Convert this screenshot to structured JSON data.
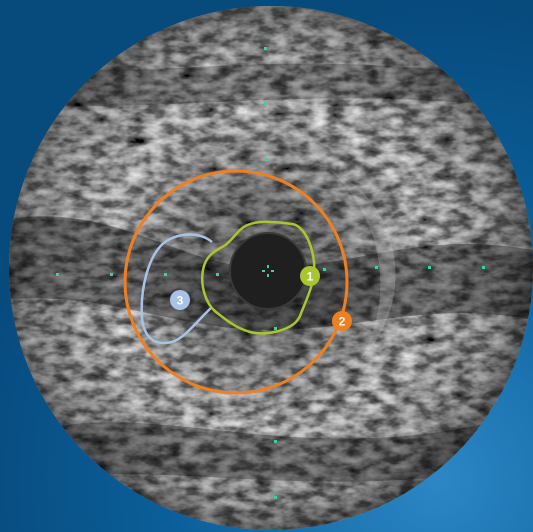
{
  "image": {
    "subject": "intravascular-ultrasound-cross-section",
    "background_color": "#0b5f9a",
    "background_highlight": "#2c87c4",
    "ultrasound_field": "grayscale-speckle",
    "catheter_color": "#202020"
  },
  "markers": [
    {
      "label": "1",
      "color": "#a9c62f",
      "role": "lumen-border"
    },
    {
      "label": "2",
      "color": "#f07f1f",
      "role": "vessel-border"
    },
    {
      "label": "3",
      "color": "#a8c3e6",
      "role": "plaque-region"
    }
  ],
  "contours": {
    "lumen_color": "#a9c62f",
    "vessel_color": "#f07f1f",
    "plaque_color": "#a8c3e6"
  },
  "calibration_dot_color": "#3fd0a0"
}
